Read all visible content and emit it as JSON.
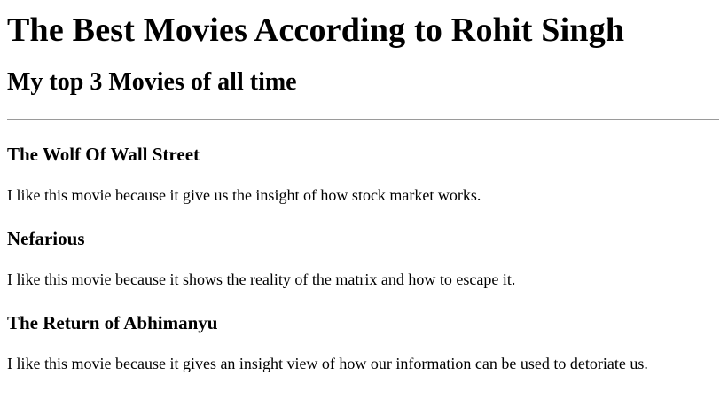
{
  "page": {
    "title": "The Best Movies According to Rohit Singh",
    "subtitle": "My top 3 Movies of all time"
  },
  "movies": [
    {
      "title": "The Wolf Of Wall Street",
      "description": "I like this movie because it give us the insight of how stock market works."
    },
    {
      "title": "Nefarious",
      "description": "I like this movie because it shows the reality of the matrix and how to escape it."
    },
    {
      "title": "The Return of Abhimanyu",
      "description": "I like this movie because it gives an insight view of how our information can be used to detoriate us."
    }
  ]
}
